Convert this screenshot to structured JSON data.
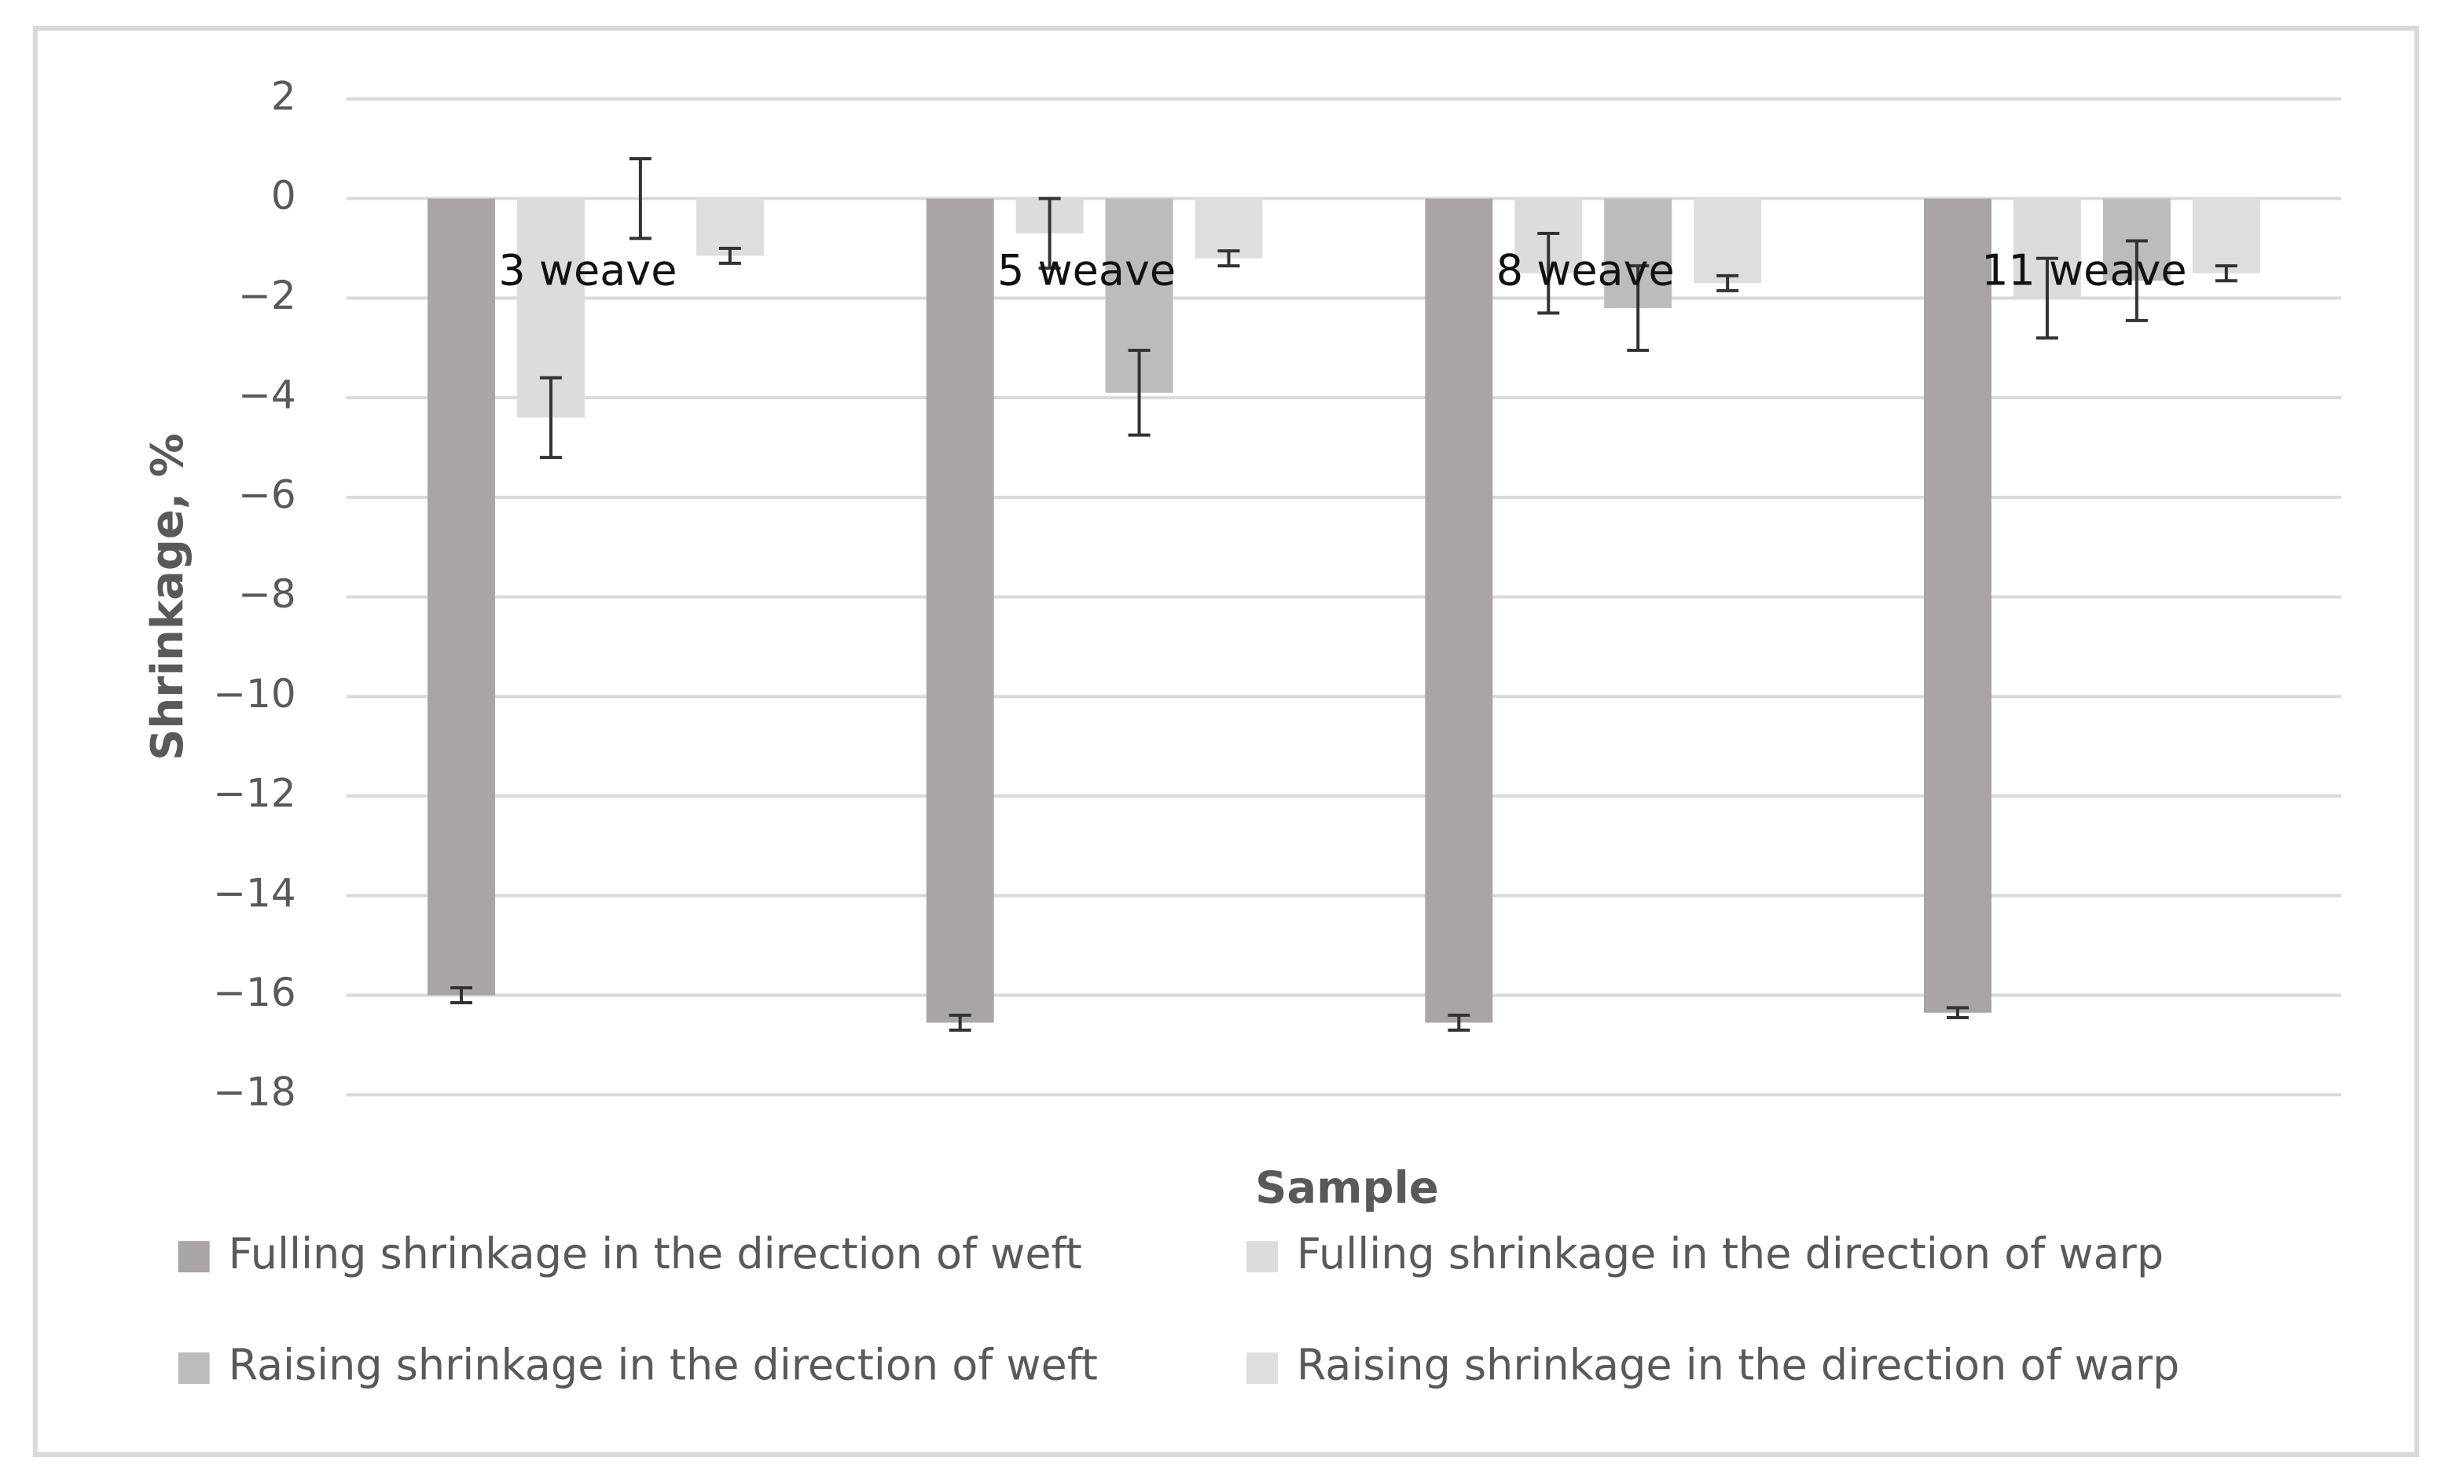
{
  "chart_data": {
    "type": "bar",
    "x_label": "Sample",
    "y_label": "Shrinkage, %",
    "categories": [
      "3 weave",
      "5 weave",
      "8 weave",
      "11 weave"
    ],
    "series": [
      {
        "name": "Fulling shrinkage in the direction of weft",
        "color": "#a9a5a4",
        "values": [
          -16,
          -16.55,
          -16.55,
          -16.35
        ],
        "errors": [
          0.15,
          0.15,
          0.15,
          0.1
        ]
      },
      {
        "name": "Fulling shrinkage in the direction of warp",
        "color": "#dcdcdc",
        "values": [
          -4.4,
          -0.7,
          -1.5,
          -2.0
        ],
        "errors": [
          0.8,
          0.7,
          0.8,
          0.8
        ]
      },
      {
        "name": "Raising shrinkage in the direction of weft",
        "color": "#bdbbbb",
        "values": [
          0,
          -3.9,
          -2.2,
          -1.65
        ],
        "errors": [
          0.8,
          0.85,
          0.85,
          0.8
        ]
      },
      {
        "name": "Raising shrinkage in the direction of warp",
        "color": "#dedede",
        "values": [
          -1.15,
          -1.2,
          -1.7,
          -1.5
        ],
        "errors": [
          0.15,
          0.15,
          0.15,
          0.15
        ]
      }
    ],
    "ylim": [
      -18,
      2
    ],
    "yticks": [
      {
        "value": -18,
        "label": "−18"
      },
      {
        "value": -16,
        "label": "−16"
      },
      {
        "value": -14,
        "label": "−14"
      },
      {
        "value": -12,
        "label": "−12"
      },
      {
        "value": -10,
        "label": "−10"
      },
      {
        "value": -8,
        "label": "−8"
      },
      {
        "value": -6,
        "label": "−6"
      },
      {
        "value": -4,
        "label": "−4"
      },
      {
        "value": -2,
        "label": "−2"
      },
      0,
      2
    ],
    "grid": true,
    "legend": "bottom"
  }
}
